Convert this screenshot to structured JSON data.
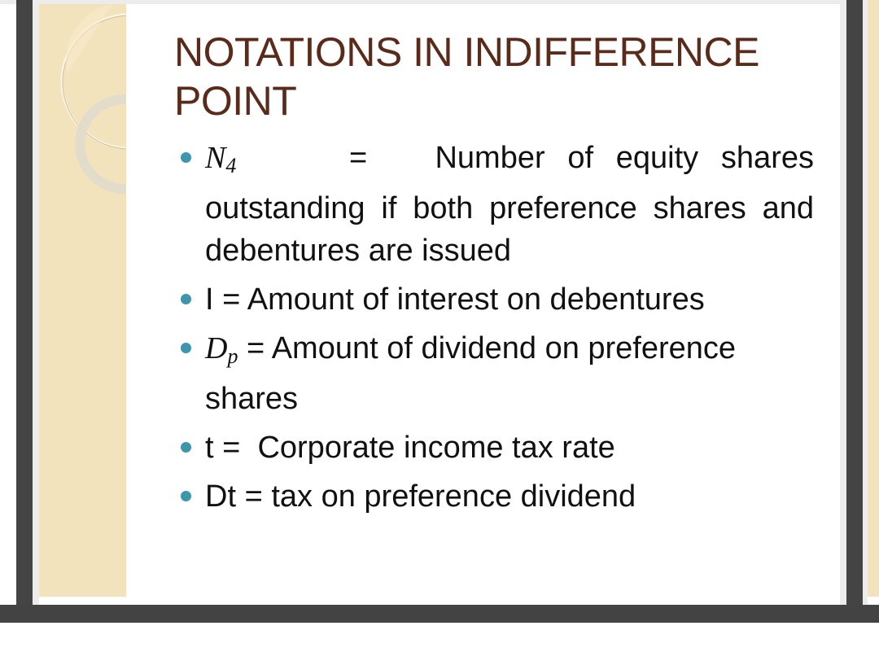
{
  "slide": {
    "title": "NOTATIONS IN INDIFFERENCE POINT",
    "bullets": [
      {
        "symbol": "N",
        "subscript": "4",
        "eq": "=",
        "text": "Number of equity shares outstanding if both preference shares and debentures are issued"
      },
      {
        "symbol": "I",
        "eq": "=",
        "text": "Amount of interest on debentures"
      },
      {
        "symbol": "D",
        "subscript": "p",
        "eq": "=",
        "text": "Amount of dividend on preference shares"
      },
      {
        "symbol": "t",
        "eq": "=",
        "text": "Corporate income tax rate"
      },
      {
        "symbol": "Dt",
        "eq": "=",
        "text": "tax on preference dividend"
      }
    ]
  },
  "colors": {
    "title": "#5a2a1a",
    "bullet": "#3d96ad",
    "sidebar": "#f3e3bd",
    "frame": "#444444"
  }
}
